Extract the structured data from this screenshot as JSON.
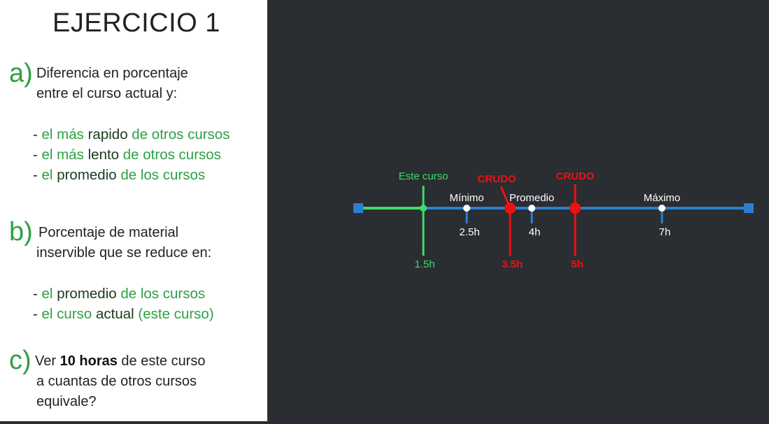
{
  "title": "EJERCICIO 1",
  "sections": {
    "a": {
      "marker": "a)",
      "lines": [
        "Diferencia en porcentaje",
        "entre el curso actual y:"
      ],
      "bullets": [
        [
          "- ",
          "el más ",
          "rapido",
          " de otros cursos"
        ],
        [
          "- ",
          "el más ",
          "lento",
          " de otros cursos"
        ],
        [
          "- ",
          "el ",
          "promedio",
          " de los cursos"
        ]
      ]
    },
    "b": {
      "marker": "b)",
      "lines": [
        "Porcentaje de material",
        "inservible que se reduce en:"
      ],
      "bullets": [
        [
          "- ",
          "el ",
          "promedio",
          " de los cursos"
        ],
        [
          "- ",
          "el curso ",
          "actual",
          " (este curso)"
        ]
      ]
    },
    "c": {
      "marker": "c)",
      "line1": [
        "Ver ",
        "10 horas",
        " de este curso"
      ],
      "lines": [
        "a cuantas de otros cursos",
        "equivale?"
      ]
    }
  },
  "timeline": {
    "range": [
      0,
      9
    ],
    "colors": {
      "line": "#2d7ed1",
      "green": "#3ddc6a",
      "red": "#ee1111",
      "white": "#ffffff"
    },
    "points": [
      {
        "name": "este-curso",
        "label": "Este curso",
        "value": 1.5,
        "value_label": "1.5h",
        "color": "#3ddc6a"
      },
      {
        "name": "minimo",
        "label": "Mínimo",
        "value": 2.5,
        "value_label": "2.5h",
        "color": "#ffffff"
      },
      {
        "name": "crudo-1",
        "label": "CRUDO",
        "value": 3.5,
        "value_label": "3.5h",
        "color": "#ee1111"
      },
      {
        "name": "promedio",
        "label": "Promedio",
        "value": 4,
        "value_label": "4h",
        "color": "#ffffff"
      },
      {
        "name": "crudo-2",
        "label": "CRUDO",
        "value": 5,
        "value_label": "5h",
        "color": "#ee1111"
      },
      {
        "name": "maximo",
        "label": "Máximo",
        "value": 7,
        "value_label": "7h",
        "color": "#ffffff"
      }
    ]
  }
}
